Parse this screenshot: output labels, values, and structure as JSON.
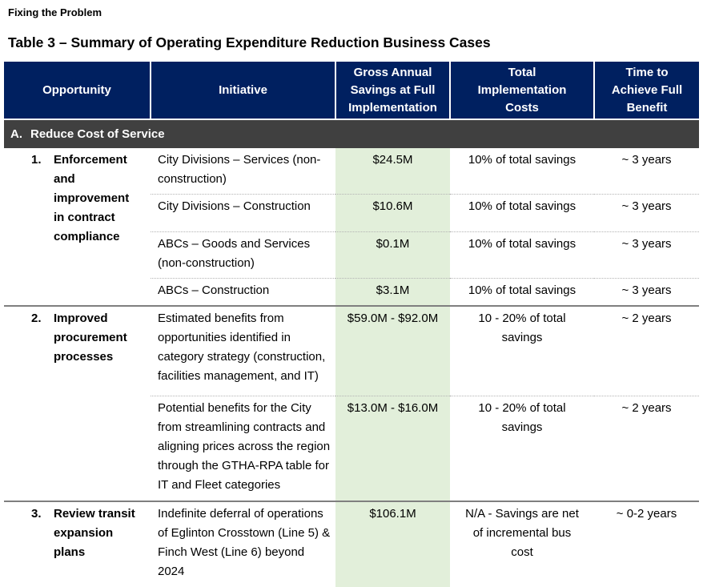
{
  "page": {
    "header": "Fixing the Problem",
    "title": "Table 3 – Summary of Operating Expenditure Reduction Business Cases"
  },
  "table": {
    "columns": [
      "Opportunity",
      "Initiative",
      "Gross Annual Savings at Full Implementation",
      "Total Implementation Costs",
      "Time to Achieve Full Benefit"
    ],
    "section": {
      "letter": "A.",
      "title": "Reduce Cost of Service"
    },
    "groups": [
      {
        "number": "1.",
        "opportunity": "Enforcement and improvement in contract compliance",
        "rows": [
          {
            "initiative": "City Divisions – Services (non-construction)",
            "savings": "$24.5M",
            "costs": "10% of total savings",
            "time": "~ 3 years"
          },
          {
            "initiative": "City Divisions – Construction",
            "savings": "$10.6M",
            "costs": "10% of total savings",
            "time": "~ 3 years"
          },
          {
            "initiative": "ABCs – Goods and Services (non-construction)",
            "savings": "$0.1M",
            "costs": "10% of total savings",
            "time": "~ 3 years"
          },
          {
            "initiative": "ABCs – Construction",
            "savings": "$3.1M",
            "costs": "10% of total savings",
            "time": "~ 3 years"
          }
        ]
      },
      {
        "number": "2.",
        "opportunity": "Improved procurement processes",
        "rows": [
          {
            "initiative": "Estimated benefits from opportunities identified in category strategy (construction, facilities management, and IT)",
            "savings": "$59.0M - $92.0M",
            "costs": "10 - 20% of total savings",
            "time": "~ 2 years"
          },
          {
            "initiative": "Potential benefits for the City from streamlining contracts and aligning prices across the region through the GTHA-RPA table for IT and Fleet categories",
            "savings": "$13.0M - $16.0M",
            "costs": "10 - 20% of total savings",
            "time": "~ 2 years"
          }
        ]
      },
      {
        "number": "3.",
        "opportunity": "Review transit expansion plans",
        "rows": [
          {
            "initiative": "Indefinite deferral of operations of Eglinton Crosstown (Line 5) & Finch West (Line 6) beyond 2024",
            "savings": "$106.1M",
            "costs": "N/A - Savings are net of incremental bus cost",
            "time": "~ 0-2 years"
          }
        ]
      }
    ],
    "colors": {
      "header_bg": "#002060",
      "section_bg": "#404040",
      "savings_col_bg": "#e2efda"
    }
  }
}
